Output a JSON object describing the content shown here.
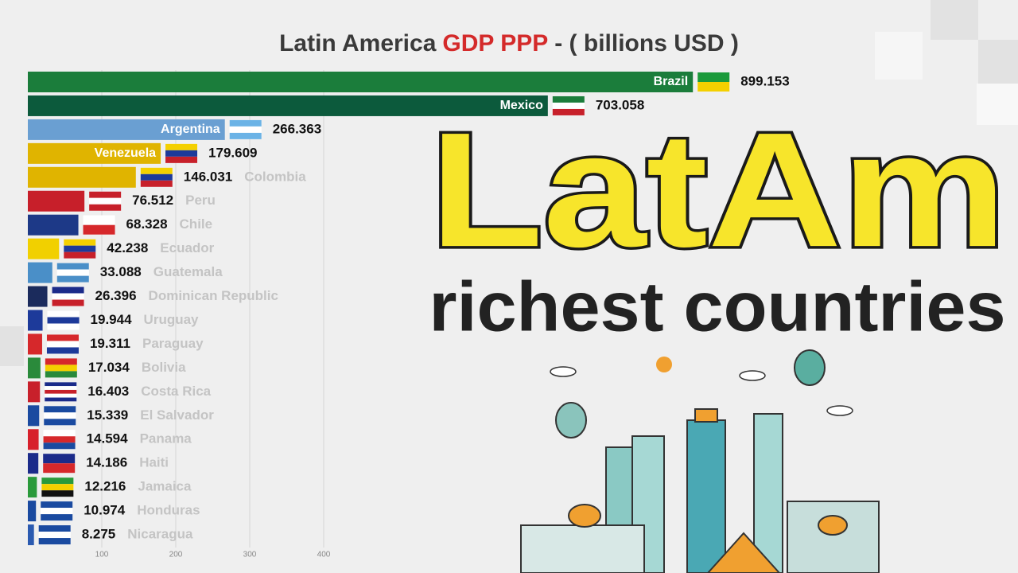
{
  "chart_data": {
    "type": "bar",
    "orientation": "horizontal",
    "title_parts": [
      "Latin America",
      "GDP PPP",
      "- ( billions USD )"
    ],
    "title_colors": [
      "#3a3a3a",
      "#d42a2a",
      "#3a3a3a"
    ],
    "categories": [
      "Brazil",
      "Mexico",
      "Argentina",
      "Venezuela",
      "Colombia",
      "Peru",
      "Chile",
      "Ecuador",
      "Guatemala",
      "Dominican Republic",
      "Uruguay",
      "Paraguay",
      "Bolivia",
      "Costa Rica",
      "El Salvador",
      "Panama",
      "Haiti",
      "Jamaica",
      "Honduras",
      "Nicaragua"
    ],
    "values": [
      899.153,
      703.058,
      266.363,
      179.609,
      146.031,
      76.512,
      68.328,
      42.238,
      33.088,
      26.396,
      19.944,
      19.311,
      17.034,
      16.403,
      15.339,
      14.594,
      14.186,
      12.216,
      10.974,
      8.275
    ],
    "colors": [
      "#1b7d3b",
      "#0c5a3c",
      "#6a9fd2",
      "#e0b400",
      "#e0b400",
      "#c71f2a",
      "#1d3987",
      "#f1d000",
      "#4a8fc8",
      "#1b2b5c",
      "#1d3a9a",
      "#d6282b",
      "#2a8a3b",
      "#c8202b",
      "#1a4aa0",
      "#d7202b",
      "#1b2b8a",
      "#2a9a3b",
      "#1a4aa0",
      "#2a5ab0"
    ],
    "xlim": [
      0,
      1000
    ],
    "xticks": [
      100,
      200,
      300,
      400
    ],
    "grid": true,
    "annotations": [
      "LatAm",
      "richest countries"
    ]
  }
}
